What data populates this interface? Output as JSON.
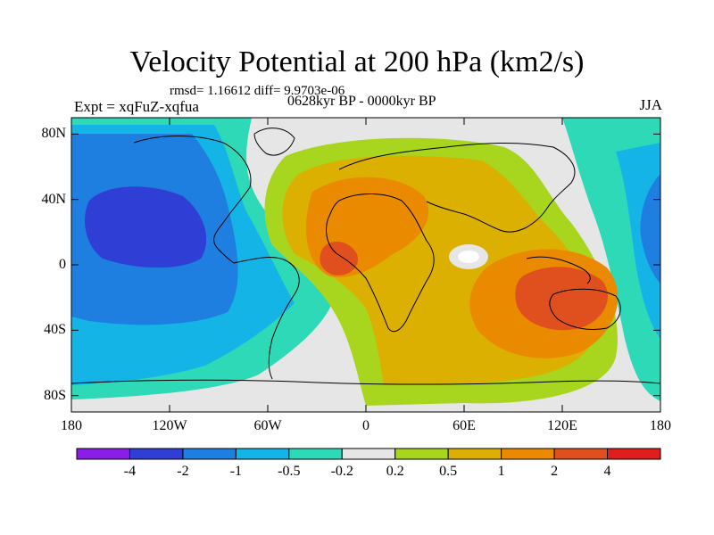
{
  "title": "Velocity Potential at 200 hPa (km2/s)",
  "subtitle_rmsd": "rmsd= 1.16612 diff= 9.9703e-06",
  "subtitle_left": "Expt = xqFuZ-xqfua",
  "subtitle_center": "0628kyr BP - 0000kyr BP",
  "subtitle_right": "JJA",
  "lat_labels": [
    "80N",
    "40N",
    "0",
    "40S",
    "80S"
  ],
  "lon_labels": [
    "180",
    "120W",
    "60W",
    "0",
    "60E",
    "120E",
    "180"
  ],
  "colorbar": {
    "labels": [
      "-4",
      "-2",
      "-1",
      "-0.5",
      "-0.2",
      "0.2",
      "0.5",
      "1",
      "2",
      "4"
    ],
    "colors": [
      "#8a1ee6",
      "#2f3fd6",
      "#1e7fe0",
      "#15b4e6",
      "#2ed9b8",
      "#e6e6e6",
      "#a8d51e",
      "#dcb000",
      "#ea8a00",
      "#e0501e",
      "#e01e1e"
    ]
  },
  "map_colors": {
    "background": "#e6e6e6",
    "deep_negative": "#2f3fd6",
    "negative": "#1e7fe0",
    "weak_negative": "#15b4e6",
    "near_zero_negative": "#2ed9b8",
    "weak_positive": "#a8d51e",
    "positive": "#dcb000",
    "strong_positive": "#ea8a00",
    "max_positive": "#e0501e"
  }
}
